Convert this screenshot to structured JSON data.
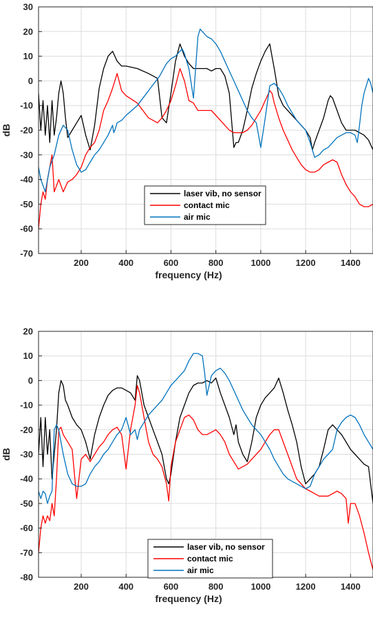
{
  "chart_data": [
    {
      "type": "line",
      "xlabel": "frequency (Hz)",
      "ylabel": "dB",
      "xlim": [
        10,
        1500
      ],
      "ylim": [
        -70,
        30
      ],
      "xticks": [
        200,
        400,
        600,
        800,
        1000,
        1200,
        1400
      ],
      "yticks": [
        -70,
        -60,
        -50,
        -40,
        -30,
        -20,
        -10,
        0,
        10,
        20,
        30
      ],
      "grid": true,
      "legend_position": "center",
      "series": [
        {
          "name": "laser vib, no sensor",
          "color": "#000000",
          "x": [
            10,
            20,
            30,
            40,
            50,
            60,
            70,
            80,
            90,
            100,
            110,
            120,
            130,
            140,
            160,
            180,
            200,
            220,
            240,
            260,
            280,
            300,
            320,
            340,
            360,
            380,
            400,
            450,
            500,
            540,
            560,
            580,
            600,
            620,
            640,
            660,
            680,
            700,
            720,
            740,
            760,
            780,
            800,
            820,
            840,
            860,
            880,
            890,
            900,
            920,
            940,
            960,
            980,
            1000,
            1020,
            1040,
            1050,
            1060,
            1080,
            1100,
            1120,
            1140,
            1160,
            1180,
            1200,
            1220,
            1230,
            1240,
            1260,
            1280,
            1300,
            1310,
            1320,
            1340,
            1360,
            1380,
            1400,
            1420,
            1440,
            1460,
            1480,
            1500
          ],
          "y": [
            -5,
            -20,
            -8,
            -22,
            -10,
            -25,
            -8,
            -22,
            -15,
            -5,
            0,
            -5,
            -15,
            -23,
            -20,
            -17,
            -14,
            -22,
            -28,
            -18,
            -3,
            5,
            10,
            12,
            8,
            6,
            6,
            5,
            3,
            1,
            -15,
            -17,
            -5,
            8,
            15,
            10,
            7,
            5,
            5,
            5,
            5,
            4,
            5,
            5,
            2,
            -5,
            -27,
            -25,
            -25,
            -20,
            -12,
            -3,
            3,
            8,
            12,
            15,
            10,
            5,
            -6,
            -10,
            -12,
            -14,
            -16,
            -18,
            -20,
            -23,
            -28,
            -25,
            -20,
            -15,
            -8,
            -6,
            -7,
            -12,
            -17,
            -20,
            -20,
            -20,
            -21,
            -22,
            -24,
            -28
          ]
        },
        {
          "name": "contact mic",
          "color": "#ff0000",
          "x": [
            10,
            20,
            30,
            40,
            50,
            60,
            70,
            80,
            100,
            120,
            140,
            160,
            180,
            200,
            220,
            240,
            260,
            280,
            300,
            320,
            340,
            360,
            380,
            400,
            450,
            500,
            540,
            560,
            580,
            600,
            620,
            640,
            660,
            680,
            700,
            720,
            740,
            760,
            780,
            800,
            820,
            840,
            860,
            880,
            900,
            920,
            940,
            960,
            980,
            1000,
            1020,
            1040,
            1050,
            1060,
            1080,
            1100,
            1120,
            1140,
            1160,
            1180,
            1200,
            1220,
            1240,
            1260,
            1280,
            1300,
            1320,
            1340,
            1360,
            1380,
            1400,
            1420,
            1440,
            1460,
            1480,
            1500
          ],
          "y": [
            -60,
            -50,
            -45,
            -48,
            -40,
            -35,
            -30,
            -45,
            -40,
            -45,
            -41,
            -40,
            -38,
            -35,
            -30,
            -27,
            -25,
            -20,
            -12,
            -8,
            -3,
            3,
            -4,
            -6,
            -9,
            -15,
            -17,
            -15,
            -12,
            -8,
            -2,
            5,
            0,
            -8,
            -9,
            -12,
            -12,
            -12,
            -12,
            -14,
            -16,
            -18,
            -20,
            -21,
            -21,
            -21,
            -20,
            -18,
            -15,
            -12,
            -8,
            -4,
            -5,
            -9,
            -15,
            -20,
            -24,
            -28,
            -31,
            -34,
            -36,
            -37,
            -37,
            -36,
            -34,
            -33,
            -32,
            -33,
            -38,
            -42,
            -45,
            -47,
            -50,
            -51,
            -51,
            -50
          ]
        },
        {
          "name": "air mic",
          "color": "#0072bd",
          "x": [
            10,
            20,
            40,
            60,
            80,
            100,
            120,
            140,
            160,
            180,
            200,
            220,
            240,
            260,
            280,
            300,
            320,
            340,
            345,
            350,
            360,
            380,
            400,
            450,
            500,
            550,
            580,
            600,
            620,
            640,
            650,
            660,
            680,
            700,
            720,
            730,
            740,
            760,
            780,
            800,
            820,
            840,
            860,
            880,
            900,
            920,
            940,
            960,
            980,
            990,
            1000,
            1020,
            1040,
            1060,
            1080,
            1100,
            1120,
            1140,
            1160,
            1180,
            1200,
            1220,
            1240,
            1260,
            1280,
            1300,
            1320,
            1340,
            1360,
            1380,
            1400,
            1420,
            1430,
            1440,
            1450,
            1460,
            1470,
            1480,
            1490,
            1500
          ],
          "y": [
            -35,
            -40,
            -45,
            -35,
            -30,
            -22,
            -18,
            -20,
            -28,
            -34,
            -37,
            -36,
            -33,
            -30,
            -28,
            -25,
            -22,
            -18,
            -21,
            -20,
            -17,
            -16,
            -14,
            -10,
            -4,
            2,
            7,
            9,
            10,
            12,
            13,
            11,
            5,
            -7,
            18,
            21,
            20,
            18,
            17,
            15,
            12,
            8,
            4,
            0,
            -4,
            -8,
            -12,
            -15,
            -17,
            -22,
            -27,
            -15,
            -2,
            -1,
            -3,
            -6,
            -10,
            -13,
            -16,
            -18,
            -20,
            -25,
            -31,
            -30,
            -28,
            -27,
            -25,
            -23,
            -22,
            -21,
            -21,
            -22,
            -25,
            -18,
            -10,
            -5,
            -2,
            1,
            -1,
            -5
          ]
        }
      ]
    },
    {
      "type": "line",
      "xlabel": "frequency (Hz)",
      "ylabel": "dB",
      "xlim": [
        10,
        1500
      ],
      "ylim": [
        -80,
        20
      ],
      "xticks": [
        200,
        400,
        600,
        800,
        1000,
        1200,
        1400
      ],
      "yticks": [
        -80,
        -70,
        -60,
        -50,
        -40,
        -30,
        -20,
        -10,
        0,
        10,
        20
      ],
      "grid": true,
      "legend_position": "bottom-center",
      "series": [
        {
          "name": "laser vib, no sensor",
          "color": "#000000",
          "x": [
            10,
            20,
            30,
            40,
            50,
            60,
            70,
            80,
            90,
            100,
            110,
            120,
            130,
            140,
            160,
            180,
            200,
            220,
            240,
            260,
            280,
            300,
            320,
            340,
            360,
            380,
            400,
            420,
            440,
            450,
            460,
            480,
            500,
            520,
            540,
            560,
            580,
            590,
            600,
            620,
            640,
            660,
            680,
            700,
            720,
            740,
            760,
            780,
            800,
            820,
            840,
            860,
            880,
            890,
            900,
            920,
            940,
            960,
            980,
            1000,
            1020,
            1040,
            1060,
            1080,
            1100,
            1120,
            1140,
            1160,
            1180,
            1200,
            1220,
            1240,
            1260,
            1280,
            1300,
            1320,
            1340,
            1360,
            1380,
            1400,
            1420,
            1440,
            1460,
            1480,
            1500
          ],
          "y": [
            -30,
            -15,
            -35,
            -15,
            -30,
            -20,
            -40,
            -30,
            -20,
            -5,
            0,
            -2,
            -8,
            -10,
            -15,
            -18,
            -20,
            -25,
            -32,
            -22,
            -15,
            -10,
            -6,
            -4,
            -3,
            -3,
            -4,
            -5,
            -8,
            2,
            0,
            -10,
            -15,
            -20,
            -25,
            -30,
            -40,
            -42,
            -38,
            -25,
            -15,
            -10,
            -5,
            -2,
            -1,
            -1,
            0,
            -1,
            1,
            -5,
            -10,
            -15,
            -22,
            -18,
            -25,
            -30,
            -33,
            -25,
            -15,
            -10,
            -7,
            -5,
            -3,
            1,
            -5,
            -12,
            -18,
            -25,
            -35,
            -42,
            -40,
            -38,
            -35,
            -28,
            -20,
            -18,
            -20,
            -22,
            -25,
            -28,
            -30,
            -32,
            -34,
            -35,
            -50
          ]
        },
        {
          "name": "contact mic",
          "color": "#ff0000",
          "x": [
            10,
            20,
            30,
            40,
            50,
            60,
            70,
            80,
            90,
            100,
            110,
            120,
            140,
            160,
            180,
            200,
            220,
            240,
            260,
            280,
            300,
            320,
            340,
            360,
            380,
            400,
            420,
            440,
            450,
            460,
            480,
            500,
            520,
            540,
            560,
            580,
            590,
            600,
            620,
            640,
            660,
            680,
            700,
            720,
            740,
            760,
            780,
            800,
            820,
            840,
            860,
            880,
            900,
            920,
            940,
            960,
            980,
            1000,
            1020,
            1040,
            1060,
            1080,
            1100,
            1120,
            1140,
            1160,
            1180,
            1200,
            1220,
            1240,
            1260,
            1280,
            1300,
            1320,
            1340,
            1360,
            1380,
            1390,
            1400,
            1420,
            1440,
            1460,
            1480,
            1500
          ],
          "y": [
            -70,
            -60,
            -55,
            -58,
            -55,
            -57,
            -50,
            -55,
            -40,
            -20,
            -19,
            -22,
            -25,
            -28,
            -48,
            -32,
            -30,
            -33,
            -30,
            -27,
            -25,
            -22,
            -20,
            -19,
            -22,
            -36,
            -20,
            -10,
            -2,
            -5,
            -15,
            -25,
            -30,
            -32,
            -35,
            -42,
            -49,
            -35,
            -25,
            -20,
            -15,
            -14,
            -16,
            -20,
            -22,
            -22,
            -21,
            -20,
            -22,
            -25,
            -30,
            -33,
            -36,
            -35,
            -34,
            -32,
            -30,
            -28,
            -25,
            -22,
            -20,
            -20,
            -25,
            -30,
            -35,
            -40,
            -42,
            -44,
            -45,
            -46,
            -47,
            -47,
            -47,
            -46,
            -45,
            -46,
            -48,
            -58,
            -50,
            -50,
            -55,
            -62,
            -70,
            -77
          ]
        },
        {
          "name": "air mic",
          "color": "#0072bd",
          "x": [
            10,
            20,
            30,
            40,
            50,
            60,
            70,
            80,
            90,
            100,
            110,
            120,
            140,
            160,
            180,
            200,
            220,
            240,
            260,
            280,
            300,
            320,
            340,
            360,
            380,
            400,
            420,
            440,
            450,
            460,
            480,
            500,
            520,
            540,
            560,
            580,
            600,
            620,
            640,
            660,
            680,
            700,
            720,
            740,
            750,
            760,
            780,
            800,
            820,
            840,
            860,
            880,
            900,
            920,
            940,
            960,
            980,
            1000,
            1020,
            1040,
            1060,
            1080,
            1100,
            1120,
            1140,
            1160,
            1180,
            1200,
            1220,
            1240,
            1260,
            1280,
            1300,
            1320,
            1340,
            1360,
            1380,
            1400,
            1420,
            1440,
            1460,
            1480,
            1500
          ],
          "y": [
            -45,
            -48,
            -45,
            -46,
            -50,
            -47,
            -45,
            -20,
            -18,
            -20,
            -25,
            -30,
            -38,
            -42,
            -43,
            -43,
            -42,
            -38,
            -35,
            -33,
            -30,
            -28,
            -25,
            -22,
            -20,
            -15,
            -22,
            -20,
            -24,
            -20,
            -17,
            -14,
            -12,
            -10,
            -8,
            -5,
            -2,
            0,
            2,
            4,
            8,
            11,
            11,
            10,
            3,
            -6,
            2,
            4,
            5,
            3,
            0,
            -4,
            -8,
            -12,
            -15,
            -18,
            -20,
            -22,
            -25,
            -28,
            -32,
            -35,
            -38,
            -40,
            -41,
            -42,
            -43,
            -44,
            -43,
            -38,
            -35,
            -32,
            -30,
            -28,
            -20,
            -17,
            -15,
            -14,
            -15,
            -18,
            -22,
            -25,
            -28
          ]
        }
      ]
    }
  ]
}
